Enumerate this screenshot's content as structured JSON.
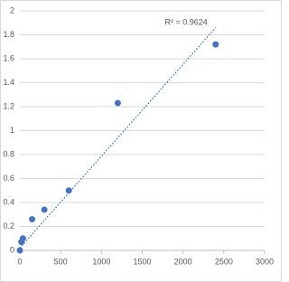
{
  "chart_data": {
    "type": "scatter",
    "x": [
      0,
      18.75,
      37.5,
      150,
      300,
      600,
      1200,
      2400
    ],
    "series": [
      {
        "color": "#4472c4",
        "values": [
          0.0,
          0.07,
          0.1,
          0.26,
          0.34,
          0.5,
          1.23,
          1.72
        ]
      }
    ],
    "trendline": {
      "x": [
        0,
        2400
      ],
      "values": [
        0.02,
        1.86
      ],
      "color": "#2e75b6"
    },
    "annotation": "R² = 0.9624",
    "xlim": [
      0,
      3000
    ],
    "xticks": [
      0,
      500,
      1000,
      1500,
      2000,
      2500,
      3000
    ],
    "ylim": [
      0,
      2
    ],
    "yticks": [
      0,
      0.2,
      0.4,
      0.6,
      0.8,
      1,
      1.2,
      1.4,
      1.6,
      1.8,
      2
    ],
    "grid": true
  }
}
